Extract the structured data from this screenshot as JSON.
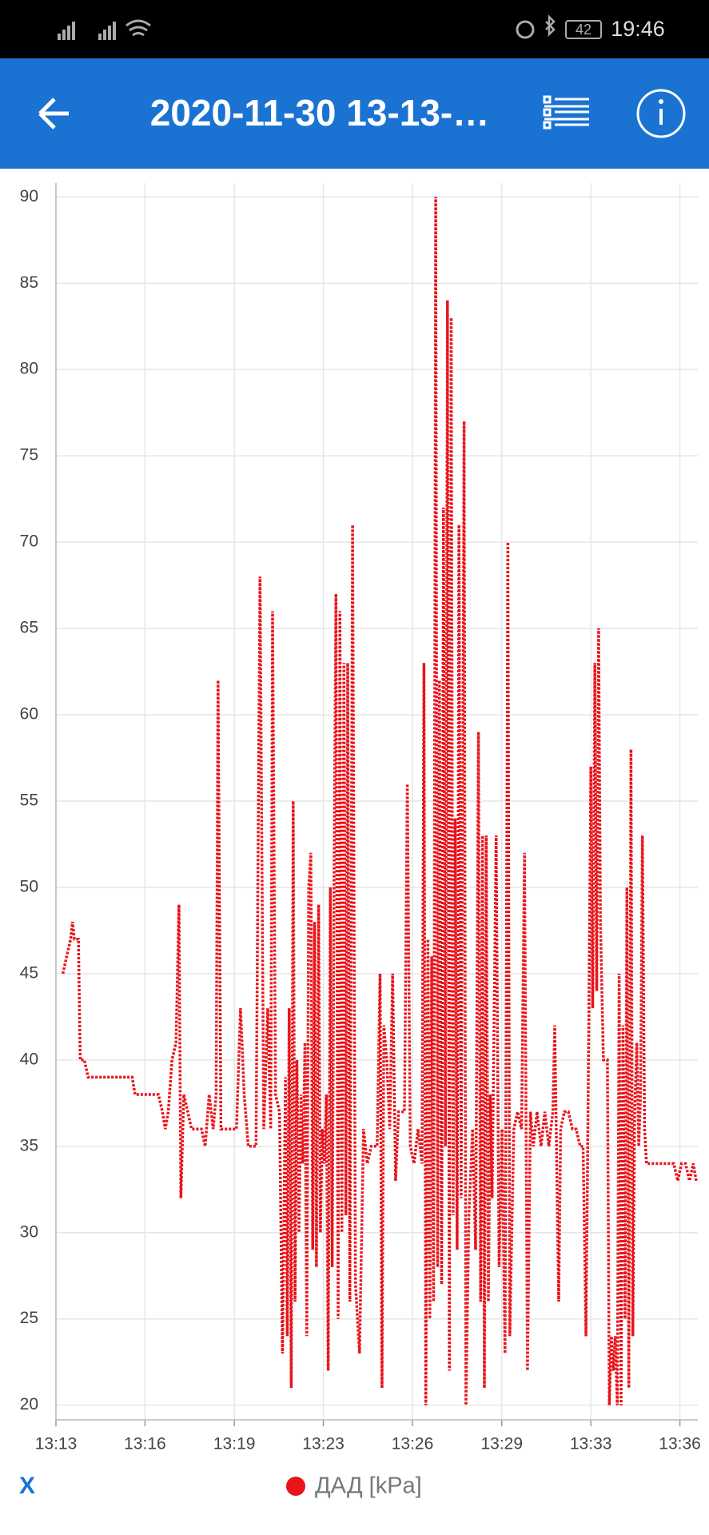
{
  "status_bar": {
    "battery": "42",
    "time": "19:46"
  },
  "app_bar": {
    "title": "2020-11-30 13-13-…"
  },
  "chart_data": {
    "type": "line",
    "x_label": "X",
    "x": [
      793.26,
      793.4,
      793.55,
      793.62,
      793.69,
      793.84,
      793.91,
      794.06,
      794.2,
      795.85,
      795.96,
      796.83,
      796.98,
      797.09,
      797.2,
      797.34,
      797.49,
      797.6,
      797.67,
      797.78,
      797.93,
      798.07,
      798.44,
      798.58,
      798.73,
      798.88,
      798.99,
      799.06,
      799.17,
      799.75,
      799.9,
      800.04,
      800.19,
      800.48,
      800.63,
      800.77,
      800.92,
      801.03,
      801.1,
      801.21,
      801.36,
      801.47,
      801.58,
      801.65,
      801.72,
      801.8,
      801.87,
      801.94,
      802.01,
      802.09,
      802.16,
      802.23,
      802.31,
      802.38,
      802.45,
      802.53,
      802.6,
      802.67,
      802.74,
      802.82,
      802.89,
      802.96,
      803.04,
      803.11,
      803.18,
      803.26,
      803.33,
      803.4,
      803.47,
      803.55,
      803.62,
      803.69,
      803.77,
      803.84,
      803.91,
      803.99,
      804.09,
      804.2,
      804.35,
      804.5,
      804.64,
      804.79,
      805.01,
      805.12,
      805.19,
      805.26,
      805.37,
      805.48,
      805.59,
      805.7,
      805.81,
      806.03,
      806.14,
      806.25,
      806.39,
      806.54,
      806.69,
      806.76,
      806.83,
      806.91,
      806.98,
      807.05,
      807.12,
      807.2,
      807.27,
      807.34,
      807.42,
      807.49,
      807.56,
      807.64,
      807.71,
      807.78,
      807.85,
      807.93,
      808.0,
      808.07,
      808.15,
      808.26,
      808.33,
      808.44,
      808.58,
      808.69,
      808.8,
      808.88,
      808.95,
      809.02,
      809.09,
      809.17,
      809.24,
      809.31,
      809.46,
      809.57,
      809.68,
      809.79,
      809.9,
      809.97,
      810.12,
      810.26,
      810.41,
      810.52,
      810.63,
      810.74,
      810.85,
      810.99,
      811.14,
      811.28,
      811.43,
      811.58,
      811.65,
      811.8,
      811.87,
      812.01,
      812.16,
      812.31,
      812.45,
      812.6,
      812.71,
      812.82,
      812.93,
      813.0,
      813.07,
      813.15,
      813.22,
      813.29,
      813.36,
      813.47,
      813.62,
      813.69,
      813.77,
      813.84,
      813.91,
      813.99,
      814.06,
      814.13,
      814.2,
      814.28,
      814.35,
      814.42,
      814.5,
      814.57,
      814.64,
      814.72,
      814.79,
      814.86,
      814.93,
      815.01,
      815.08,
      815.37,
      815.74,
      816.1,
      816.25,
      816.39,
      816.54,
      816.69,
      816.83,
      816.94
    ],
    "series": [
      {
        "name": "ДАД [kPa]",
        "color": "#e8141a",
        "values": [
          45,
          46,
          47,
          48,
          47,
          47,
          40,
          40,
          39,
          39,
          38,
          38,
          37,
          36,
          37,
          40,
          41,
          49,
          32,
          38,
          37,
          36,
          36,
          35,
          38,
          36,
          38,
          62,
          36,
          36,
          43,
          38,
          35,
          35,
          68,
          36,
          43,
          36,
          66,
          38,
          37,
          23,
          39,
          24,
          43,
          21,
          55,
          26,
          40,
          30,
          38,
          34,
          41,
          24,
          50,
          52,
          29,
          48,
          28,
          49,
          30,
          36,
          34,
          38,
          22,
          50,
          28,
          51,
          67,
          25,
          66,
          30,
          63,
          31,
          63,
          26,
          71,
          27,
          23,
          36,
          34,
          35,
          35,
          45,
          21,
          42,
          40,
          36,
          45,
          33,
          37,
          37,
          56,
          35,
          34,
          36,
          34,
          63,
          20,
          47,
          25,
          46,
          26,
          90,
          28,
          62,
          27,
          72,
          35,
          84,
          22,
          83,
          31,
          54,
          29,
          71,
          32,
          77,
          20,
          31,
          36,
          29,
          59,
          26,
          53,
          21,
          53,
          26,
          38,
          32,
          53,
          28,
          36,
          23,
          70,
          24,
          36,
          37,
          36,
          52,
          22,
          37,
          35,
          37,
          35,
          37,
          35,
          37,
          42,
          26,
          36,
          37,
          37,
          36,
          36,
          35,
          35,
          24,
          43,
          57,
          43,
          63,
          44,
          65,
          48,
          40,
          40,
          20,
          24,
          22,
          24,
          20,
          45,
          20,
          42,
          25,
          50,
          21,
          58,
          24,
          37,
          41,
          35,
          38,
          53,
          36,
          34,
          34,
          34,
          34,
          33,
          34,
          34,
          33,
          34,
          33
        ]
      }
    ],
    "xlim": [
      793,
      817
    ],
    "xticks": [
      {
        "value": 793,
        "label": "13:13"
      },
      {
        "value": 796.33,
        "label": "13:16"
      },
      {
        "value": 799.67,
        "label": "13:19"
      },
      {
        "value": 803,
        "label": "13:23"
      },
      {
        "value": 806.33,
        "label": "13:26"
      },
      {
        "value": 809.67,
        "label": "13:29"
      },
      {
        "value": 813,
        "label": "13:33"
      },
      {
        "value": 816.33,
        "label": "13:36"
      }
    ],
    "ylim": [
      19.15,
      90.8
    ],
    "yticks": [
      20,
      25,
      30,
      35,
      40,
      45,
      50,
      55,
      60,
      65,
      70,
      75,
      80,
      85,
      90
    ],
    "grid": true
  }
}
